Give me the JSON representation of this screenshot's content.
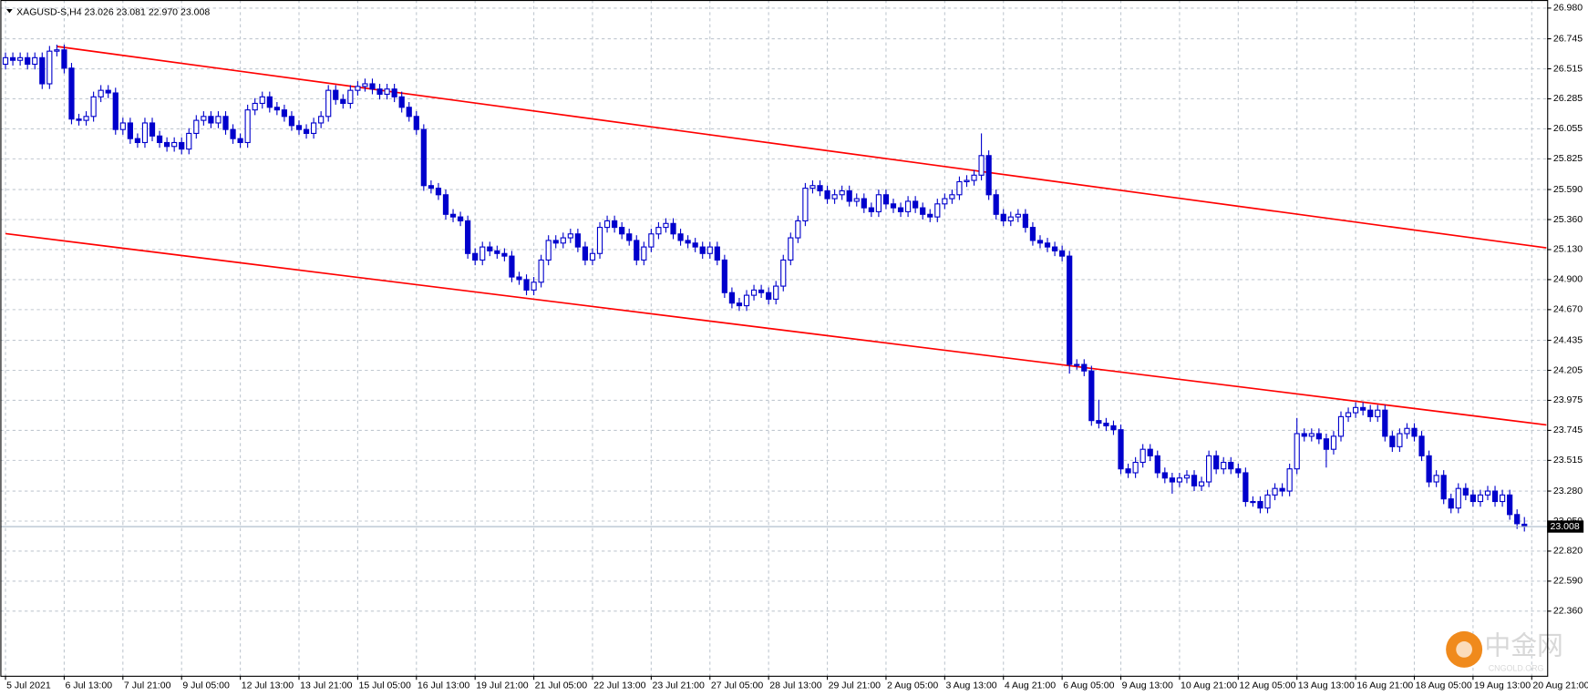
{
  "chart_data": {
    "type": "candlestick",
    "symbol": "XAGUSD-S,H4",
    "value_labels": [
      "23.026",
      "23.081",
      "22.970",
      "23.008"
    ],
    "watermark": {
      "text": "中金网",
      "sub": "CNGOLD.ORG"
    },
    "up_color": "#ffffff",
    "down_color": "#0000cc",
    "edge_color": "#0000cc",
    "trendline_color": "#ff0000",
    "price_line_color": "#a8b8c8",
    "grid": true,
    "xlim": [
      -0.7,
      210.1
    ],
    "ylim": [
      21.865,
      27.042
    ],
    "xticks": [
      {
        "value": 0,
        "label": "5 Jul 2021"
      },
      {
        "value": 8,
        "label": "6 Jul 13:00"
      },
      {
        "value": 16,
        "label": "7 Jul 21:00"
      },
      {
        "value": 24,
        "label": "9 Jul 05:00"
      },
      {
        "value": 32,
        "label": "12 Jul 13:00"
      },
      {
        "value": 40,
        "label": "13 Jul 21:00"
      },
      {
        "value": 48,
        "label": "15 Jul 05:00"
      },
      {
        "value": 56,
        "label": "16 Jul 13:00"
      },
      {
        "value": 64,
        "label": "19 Jul 21:00"
      },
      {
        "value": 72,
        "label": "21 Jul 05:00"
      },
      {
        "value": 80,
        "label": "22 Jul 13:00"
      },
      {
        "value": 88,
        "label": "23 Jul 21:00"
      },
      {
        "value": 96,
        "label": "27 Jul 05:00"
      },
      {
        "value": 104,
        "label": "28 Jul 13:00"
      },
      {
        "value": 112,
        "label": "29 Jul 21:00"
      },
      {
        "value": 120,
        "label": "2 Aug 05:00"
      },
      {
        "value": 128,
        "label": "3 Aug 13:00"
      },
      {
        "value": 136,
        "label": "4 Aug 21:00"
      },
      {
        "value": 144,
        "label": "6 Aug 05:00"
      },
      {
        "value": 152,
        "label": "9 Aug 13:00"
      },
      {
        "value": 160,
        "label": "10 Aug 21:00"
      },
      {
        "value": 168,
        "label": "12 Aug 05:00"
      },
      {
        "value": 176,
        "label": "13 Aug 13:00"
      },
      {
        "value": 184,
        "label": "16 Aug 21:00"
      },
      {
        "value": 192,
        "label": "18 Aug 05:00"
      },
      {
        "value": 200,
        "label": "19 Aug 13:00"
      },
      {
        "value": 208,
        "label": "20 Aug 21:00"
      }
    ],
    "yticks": [
      {
        "value": 26.98,
        "label": "26.980"
      },
      26.745,
      26.515,
      26.285,
      26.055,
      25.825,
      {
        "value": 25.59,
        "label": "25.590"
      },
      {
        "value": 25.36,
        "label": "25.360"
      },
      {
        "value": 25.13,
        "label": "25.130"
      },
      {
        "value": 24.9,
        "label": "24.900"
      },
      {
        "value": 24.67,
        "label": "24.670"
      },
      24.435,
      24.205,
      23.975,
      23.745,
      23.515,
      {
        "value": 23.28,
        "label": "23.280"
      },
      {
        "value": 23.05,
        "label": "23.050"
      },
      {
        "value": 22.82,
        "label": "22.820"
      },
      {
        "value": 22.59,
        "label": "22.590"
      },
      {
        "value": 22.36,
        "label": "22.360"
      }
    ],
    "trendlines": [
      {
        "x": [
          7,
          210
        ],
        "y": [
          26.686,
          25.143
        ]
      },
      {
        "x": [
          0,
          210
        ],
        "y": [
          25.252,
          23.787
        ]
      }
    ],
    "candles": [
      [
        26.55,
        26.64,
        26.51,
        26.6
      ],
      [
        26.6,
        26.64,
        26.54,
        26.58
      ],
      [
        26.58,
        26.64,
        26.54,
        26.6
      ],
      [
        26.6,
        26.64,
        26.51,
        26.55
      ],
      [
        26.55,
        26.64,
        26.51,
        26.6
      ],
      [
        26.6,
        26.64,
        26.36,
        26.4
      ],
      [
        26.4,
        26.69,
        26.36,
        26.65
      ],
      [
        26.65,
        26.7,
        26.61,
        26.66
      ],
      [
        26.66,
        26.7,
        26.48,
        26.52
      ],
      [
        26.52,
        26.56,
        26.09,
        26.13
      ],
      [
        26.13,
        26.17,
        26.08,
        26.12
      ],
      [
        26.12,
        26.19,
        26.08,
        26.15
      ],
      [
        26.15,
        26.34,
        26.11,
        26.3
      ],
      [
        26.3,
        26.39,
        26.26,
        26.35
      ],
      [
        26.35,
        26.39,
        26.29,
        26.33
      ],
      [
        26.33,
        26.37,
        26.01,
        26.05
      ],
      [
        26.05,
        26.14,
        26.01,
        26.1
      ],
      [
        26.1,
        26.14,
        25.94,
        25.98
      ],
      [
        25.98,
        26.02,
        25.91,
        25.95
      ],
      [
        25.95,
        26.14,
        25.91,
        26.1
      ],
      [
        26.1,
        26.14,
        25.96,
        26.0
      ],
      [
        26.0,
        26.04,
        25.91,
        25.95
      ],
      [
        25.95,
        25.99,
        25.88,
        25.92
      ],
      [
        25.92,
        25.99,
        25.88,
        25.95
      ],
      [
        25.95,
        25.99,
        25.86,
        25.9
      ],
      [
        25.9,
        26.06,
        25.86,
        26.02
      ],
      [
        26.02,
        26.16,
        25.98,
        26.12
      ],
      [
        26.12,
        26.19,
        26.08,
        26.15
      ],
      [
        26.15,
        26.19,
        26.06,
        26.1
      ],
      [
        26.1,
        26.19,
        26.06,
        26.15
      ],
      [
        26.15,
        26.19,
        26.01,
        26.05
      ],
      [
        26.05,
        26.09,
        25.94,
        25.98
      ],
      [
        25.98,
        26.02,
        25.91,
        25.95
      ],
      [
        25.95,
        26.24,
        25.91,
        26.2
      ],
      [
        26.2,
        26.29,
        26.16,
        26.25
      ],
      [
        26.25,
        26.34,
        26.21,
        26.3
      ],
      [
        26.3,
        26.34,
        26.18,
        26.22
      ],
      [
        26.22,
        26.26,
        26.16,
        26.2
      ],
      [
        26.2,
        26.24,
        26.11,
        26.15
      ],
      [
        26.15,
        26.19,
        26.04,
        26.08
      ],
      [
        26.08,
        26.12,
        26.01,
        26.05
      ],
      [
        26.05,
        26.09,
        25.98,
        26.02
      ],
      [
        26.02,
        26.14,
        25.98,
        26.1
      ],
      [
        26.1,
        26.19,
        26.06,
        26.15
      ],
      [
        26.15,
        26.39,
        26.11,
        26.35
      ],
      [
        26.35,
        26.39,
        26.24,
        26.28
      ],
      [
        26.28,
        26.32,
        26.21,
        26.25
      ],
      [
        26.25,
        26.39,
        26.21,
        26.35
      ],
      [
        26.35,
        26.42,
        26.31,
        26.38
      ],
      [
        26.38,
        26.44,
        26.34,
        26.4
      ],
      [
        26.4,
        26.44,
        26.32,
        26.36
      ],
      [
        26.36,
        26.4,
        26.28,
        26.32
      ],
      [
        26.32,
        26.4,
        26.28,
        26.36
      ],
      [
        26.36,
        26.4,
        26.26,
        26.3
      ],
      [
        26.3,
        26.34,
        26.18,
        26.22
      ],
      [
        26.22,
        26.26,
        26.11,
        26.15
      ],
      [
        26.15,
        26.19,
        26.01,
        26.05
      ],
      [
        26.05,
        26.09,
        25.58,
        25.62
      ],
      [
        25.62,
        25.66,
        25.56,
        25.6
      ],
      [
        25.6,
        25.64,
        25.51,
        25.55
      ],
      [
        25.55,
        25.59,
        25.36,
        25.4
      ],
      [
        25.4,
        25.44,
        25.34,
        25.38
      ],
      [
        25.38,
        25.42,
        25.31,
        25.35
      ],
      [
        25.35,
        25.39,
        25.06,
        25.1
      ],
      [
        25.1,
        25.14,
        25.01,
        25.05
      ],
      [
        25.05,
        25.19,
        25.01,
        25.15
      ],
      [
        25.15,
        25.19,
        25.08,
        25.12
      ],
      [
        25.12,
        25.16,
        25.06,
        25.1
      ],
      [
        25.1,
        25.14,
        25.04,
        25.08
      ],
      [
        25.08,
        25.12,
        24.88,
        24.92
      ],
      [
        24.92,
        24.96,
        24.86,
        24.9
      ],
      [
        24.9,
        24.94,
        24.78,
        24.82
      ],
      [
        24.82,
        24.92,
        24.78,
        24.88
      ],
      [
        24.88,
        25.09,
        24.84,
        25.05
      ],
      [
        25.05,
        25.24,
        25.01,
        25.2
      ],
      [
        25.2,
        25.24,
        25.14,
        25.18
      ],
      [
        25.18,
        25.26,
        25.14,
        25.22
      ],
      [
        25.22,
        25.29,
        25.18,
        25.25
      ],
      [
        25.25,
        25.29,
        25.11,
        25.15
      ],
      [
        25.15,
        25.19,
        25.01,
        25.05
      ],
      [
        25.05,
        25.14,
        25.01,
        25.1
      ],
      [
        25.1,
        25.34,
        25.06,
        25.3
      ],
      [
        25.3,
        25.39,
        25.26,
        25.35
      ],
      [
        25.35,
        25.39,
        25.26,
        25.3
      ],
      [
        25.3,
        25.34,
        25.21,
        25.25
      ],
      [
        25.25,
        25.29,
        25.16,
        25.2
      ],
      [
        25.2,
        25.24,
        25.01,
        25.05
      ],
      [
        25.05,
        25.19,
        25.01,
        25.15
      ],
      [
        25.15,
        25.29,
        25.11,
        25.25
      ],
      [
        25.25,
        25.34,
        25.21,
        25.3
      ],
      [
        25.3,
        25.37,
        25.26,
        25.33
      ],
      [
        25.33,
        25.37,
        25.21,
        25.25
      ],
      [
        25.25,
        25.29,
        25.16,
        25.2
      ],
      [
        25.2,
        25.24,
        25.14,
        25.18
      ],
      [
        25.18,
        25.22,
        25.11,
        25.15
      ],
      [
        25.15,
        25.19,
        25.06,
        25.1
      ],
      [
        25.1,
        25.19,
        25.06,
        25.15
      ],
      [
        25.15,
        25.19,
        25.01,
        25.05
      ],
      [
        25.05,
        25.09,
        24.76,
        24.8
      ],
      [
        24.8,
        24.84,
        24.68,
        24.72
      ],
      [
        24.72,
        24.76,
        24.66,
        24.7
      ],
      [
        24.7,
        24.82,
        24.66,
        24.78
      ],
      [
        24.78,
        24.86,
        24.74,
        24.82
      ],
      [
        24.82,
        24.86,
        24.76,
        24.8
      ],
      [
        24.8,
        24.84,
        24.71,
        24.75
      ],
      [
        24.75,
        24.89,
        24.71,
        24.85
      ],
      [
        24.85,
        25.09,
        24.81,
        25.05
      ],
      [
        25.05,
        25.26,
        25.01,
        25.22
      ],
      [
        25.22,
        25.39,
        25.18,
        25.35
      ],
      [
        25.35,
        25.64,
        25.31,
        25.6
      ],
      [
        25.6,
        25.66,
        25.56,
        25.62
      ],
      [
        25.62,
        25.66,
        25.54,
        25.58
      ],
      [
        25.58,
        25.62,
        25.48,
        25.52
      ],
      [
        25.52,
        25.59,
        25.48,
        25.55
      ],
      [
        25.55,
        25.62,
        25.51,
        25.58
      ],
      [
        25.58,
        25.62,
        25.46,
        25.5
      ],
      [
        25.5,
        25.56,
        25.46,
        25.52
      ],
      [
        25.52,
        25.56,
        25.41,
        25.45
      ],
      [
        25.45,
        25.49,
        25.38,
        25.42
      ],
      [
        25.42,
        25.59,
        25.38,
        25.55
      ],
      [
        25.55,
        25.59,
        25.44,
        25.48
      ],
      [
        25.48,
        25.52,
        25.41,
        25.45
      ],
      [
        25.45,
        25.49,
        25.38,
        25.42
      ],
      [
        25.42,
        25.54,
        25.38,
        25.5
      ],
      [
        25.5,
        25.54,
        25.41,
        25.45
      ],
      [
        25.45,
        25.49,
        25.36,
        25.4
      ],
      [
        25.4,
        25.44,
        25.34,
        25.38
      ],
      [
        25.38,
        25.52,
        25.34,
        25.48
      ],
      [
        25.48,
        25.56,
        25.44,
        25.52
      ],
      [
        25.52,
        25.59,
        25.48,
        25.55
      ],
      [
        25.55,
        25.69,
        25.51,
        25.65
      ],
      [
        25.65,
        25.7,
        25.61,
        25.66
      ],
      [
        25.66,
        25.74,
        25.62,
        25.7
      ],
      [
        25.7,
        26.02,
        25.66,
        25.85
      ],
      [
        25.85,
        25.89,
        25.51,
        25.55
      ],
      [
        25.55,
        25.59,
        25.36,
        25.4
      ],
      [
        25.4,
        25.44,
        25.31,
        25.35
      ],
      [
        25.35,
        25.42,
        25.31,
        25.38
      ],
      [
        25.38,
        25.44,
        25.34,
        25.4
      ],
      [
        25.4,
        25.44,
        25.26,
        25.3
      ],
      [
        25.3,
        25.34,
        25.16,
        25.2
      ],
      [
        25.2,
        25.24,
        25.14,
        25.18
      ],
      [
        25.18,
        25.22,
        25.11,
        25.15
      ],
      [
        25.15,
        25.19,
        25.08,
        25.12
      ],
      [
        25.12,
        25.16,
        25.04,
        25.08
      ],
      [
        25.08,
        25.12,
        24.18,
        24.25
      ],
      [
        24.25,
        24.29,
        24.21,
        24.25
      ],
      [
        24.25,
        24.29,
        24.16,
        24.2
      ],
      [
        24.2,
        24.24,
        23.78,
        23.82
      ],
      [
        23.82,
        23.98,
        23.76,
        23.8
      ],
      [
        23.8,
        23.84,
        23.74,
        23.78
      ],
      [
        23.78,
        23.82,
        23.71,
        23.75
      ],
      [
        23.75,
        23.79,
        23.41,
        23.45
      ],
      [
        23.45,
        23.49,
        23.38,
        23.42
      ],
      [
        23.42,
        23.54,
        23.38,
        23.5
      ],
      [
        23.5,
        23.64,
        23.46,
        23.6
      ],
      [
        23.6,
        23.64,
        23.51,
        23.55
      ],
      [
        23.55,
        23.59,
        23.38,
        23.42
      ],
      [
        23.42,
        23.46,
        23.34,
        23.38
      ],
      [
        23.38,
        23.42,
        23.26,
        23.35
      ],
      [
        23.35,
        23.42,
        23.31,
        23.38
      ],
      [
        23.38,
        23.44,
        23.34,
        23.4
      ],
      [
        23.4,
        23.44,
        23.28,
        23.32
      ],
      [
        23.32,
        23.39,
        23.28,
        23.35
      ],
      [
        23.35,
        23.59,
        23.31,
        23.55
      ],
      [
        23.55,
        23.59,
        23.41,
        23.45
      ],
      [
        23.45,
        23.54,
        23.41,
        23.5
      ],
      [
        23.5,
        23.54,
        23.41,
        23.45
      ],
      [
        23.45,
        23.49,
        23.38,
        23.42
      ],
      [
        23.42,
        23.46,
        23.16,
        23.2
      ],
      [
        23.2,
        23.24,
        23.16,
        23.2
      ],
      [
        23.2,
        23.24,
        23.11,
        23.15
      ],
      [
        23.15,
        23.29,
        23.11,
        23.25
      ],
      [
        23.25,
        23.34,
        23.21,
        23.3
      ],
      [
        23.3,
        23.34,
        23.24,
        23.28
      ],
      [
        23.28,
        23.49,
        23.24,
        23.45
      ],
      [
        23.45,
        23.84,
        23.41,
        23.72
      ],
      [
        23.72,
        23.76,
        23.66,
        23.7
      ],
      [
        23.7,
        23.76,
        23.66,
        23.72
      ],
      [
        23.72,
        23.76,
        23.64,
        23.68
      ],
      [
        23.68,
        23.72,
        23.46,
        23.6
      ],
      [
        23.6,
        23.74,
        23.56,
        23.7
      ],
      [
        23.7,
        23.89,
        23.66,
        23.85
      ],
      [
        23.85,
        23.92,
        23.81,
        23.88
      ],
      [
        23.88,
        23.96,
        23.84,
        23.92
      ],
      [
        23.92,
        23.96,
        23.86,
        23.9
      ],
      [
        23.9,
        23.94,
        23.81,
        23.85
      ],
      [
        23.85,
        23.94,
        23.81,
        23.9
      ],
      [
        23.9,
        23.94,
        23.66,
        23.7
      ],
      [
        23.7,
        23.74,
        23.58,
        23.62
      ],
      [
        23.62,
        23.76,
        23.58,
        23.72
      ],
      [
        23.72,
        23.8,
        23.68,
        23.76
      ],
      [
        23.76,
        23.8,
        23.66,
        23.7
      ],
      [
        23.7,
        23.74,
        23.51,
        23.55
      ],
      [
        23.55,
        23.59,
        23.31,
        23.35
      ],
      [
        23.35,
        23.44,
        23.31,
        23.4
      ],
      [
        23.4,
        23.44,
        23.18,
        23.22
      ],
      [
        23.22,
        23.26,
        23.11,
        23.15
      ],
      [
        23.15,
        23.34,
        23.11,
        23.3
      ],
      [
        23.3,
        23.34,
        23.21,
        23.25
      ],
      [
        23.25,
        23.29,
        23.16,
        23.2
      ],
      [
        23.2,
        23.29,
        23.16,
        23.25
      ],
      [
        23.25,
        23.32,
        23.21,
        23.28
      ],
      [
        23.28,
        23.32,
        23.16,
        23.2
      ],
      [
        23.2,
        23.29,
        23.16,
        23.25
      ],
      [
        23.25,
        23.29,
        23.06,
        23.1
      ],
      [
        23.1,
        23.14,
        22.99,
        23.03
      ],
      [
        23.026,
        23.081,
        22.97,
        23.008
      ]
    ]
  }
}
